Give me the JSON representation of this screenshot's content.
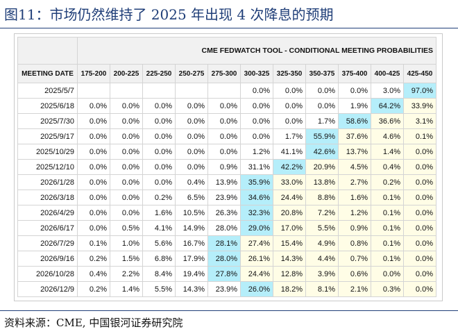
{
  "figure": {
    "title": "图11：市场仍然维持了 2025 年出现 4 次降息的预期",
    "source": "资料来源：CME, 中国银河证券研究院"
  },
  "colors": {
    "title_blue": "#1f3e78",
    "highlight_cyan": "#b5eefa",
    "highlight_pale_yellow": "#fffde6",
    "header_gray": "#f1f1f1"
  },
  "chart_data": {
    "type": "table",
    "title": "CME FEDWATCH TOOL - CONDITIONAL MEETING PROBABILITIES",
    "row_header_label": "MEETING DATE",
    "columns": [
      "175-200",
      "200-225",
      "225-250",
      "250-275",
      "275-300",
      "300-325",
      "325-350",
      "350-375",
      "375-400",
      "400-425",
      "425-450"
    ],
    "rows": [
      {
        "date": "2025/5/7",
        "values": [
          "",
          "",
          "",
          "",
          "",
          "0.0%",
          "0.0%",
          "0.0%",
          "0.0%",
          "3.0%",
          "97.0%"
        ]
      },
      {
        "date": "2025/6/18",
        "values": [
          "0.0%",
          "0.0%",
          "0.0%",
          "0.0%",
          "0.0%",
          "0.0%",
          "0.0%",
          "0.0%",
          "1.9%",
          "64.2%",
          "33.9%"
        ]
      },
      {
        "date": "2025/7/30",
        "values": [
          "0.0%",
          "0.0%",
          "0.0%",
          "0.0%",
          "0.0%",
          "0.0%",
          "0.0%",
          "1.7%",
          "58.6%",
          "36.6%",
          "3.1%"
        ]
      },
      {
        "date": "2025/9/17",
        "values": [
          "0.0%",
          "0.0%",
          "0.0%",
          "0.0%",
          "0.0%",
          "0.0%",
          "1.7%",
          "55.9%",
          "37.6%",
          "4.6%",
          "0.1%"
        ]
      },
      {
        "date": "2025/10/29",
        "values": [
          "0.0%",
          "0.0%",
          "0.0%",
          "0.0%",
          "0.0%",
          "1.2%",
          "41.1%",
          "42.6%",
          "13.7%",
          "1.4%",
          "0.0%"
        ]
      },
      {
        "date": "2025/12/10",
        "values": [
          "0.0%",
          "0.0%",
          "0.0%",
          "0.0%",
          "0.9%",
          "31.1%",
          "42.2%",
          "20.9%",
          "4.5%",
          "0.4%",
          "0.0%"
        ]
      },
      {
        "date": "2026/1/28",
        "values": [
          "0.0%",
          "0.0%",
          "0.0%",
          "0.4%",
          "13.9%",
          "35.9%",
          "33.0%",
          "13.8%",
          "2.7%",
          "0.2%",
          "0.0%"
        ]
      },
      {
        "date": "2026/3/18",
        "values": [
          "0.0%",
          "0.0%",
          "0.2%",
          "6.5%",
          "23.9%",
          "34.6%",
          "24.4%",
          "8.8%",
          "1.6%",
          "0.1%",
          "0.0%"
        ]
      },
      {
        "date": "2026/4/29",
        "values": [
          "0.0%",
          "0.0%",
          "1.6%",
          "10.5%",
          "26.3%",
          "32.3%",
          "20.8%",
          "7.2%",
          "1.2%",
          "0.1%",
          "0.0%"
        ]
      },
      {
        "date": "2026/6/17",
        "values": [
          "0.0%",
          "0.5%",
          "4.1%",
          "14.9%",
          "28.0%",
          "29.0%",
          "17.0%",
          "5.5%",
          "0.9%",
          "0.1%",
          "0.0%"
        ]
      },
      {
        "date": "2026/7/29",
        "values": [
          "0.1%",
          "1.0%",
          "5.6%",
          "16.7%",
          "28.1%",
          "27.4%",
          "15.4%",
          "4.9%",
          "0.8%",
          "0.1%",
          "0.0%"
        ]
      },
      {
        "date": "2026/9/16",
        "values": [
          "0.2%",
          "1.5%",
          "6.8%",
          "17.9%",
          "28.0%",
          "26.1%",
          "14.3%",
          "4.4%",
          "0.7%",
          "0.1%",
          "0.0%"
        ]
      },
      {
        "date": "2026/10/28",
        "values": [
          "0.4%",
          "2.2%",
          "8.4%",
          "19.4%",
          "27.8%",
          "24.4%",
          "12.8%",
          "3.9%",
          "0.6%",
          "0.0%",
          "0.0%"
        ]
      },
      {
        "date": "2026/12/9",
        "values": [
          "0.2%",
          "1.4%",
          "5.5%",
          "14.3%",
          "23.9%",
          "26.0%",
          "18.2%",
          "8.1%",
          "2.1%",
          "0.3%",
          "0.0%"
        ]
      }
    ]
  }
}
